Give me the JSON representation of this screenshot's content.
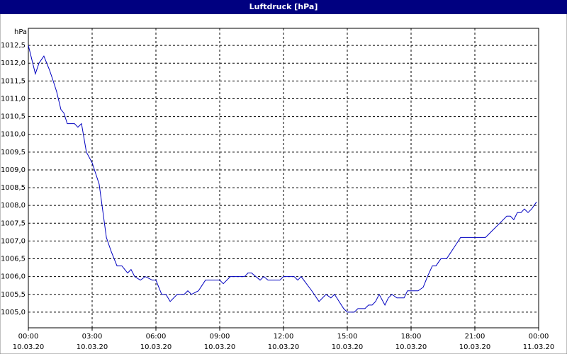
{
  "chart_data": {
    "type": "line",
    "title": "Luftdruck [hPa]",
    "y_unit_label": "hPa",
    "x": [
      0,
      0.33,
      0.5,
      0.73,
      1.0,
      1.17,
      1.33,
      1.53,
      1.67,
      1.83,
      2.17,
      2.33,
      2.5,
      2.73,
      3.0,
      3.33,
      3.67,
      3.9,
      4.17,
      4.4,
      4.67,
      4.83,
      5.0,
      5.27,
      5.5,
      5.83,
      6.0,
      6.27,
      6.47,
      6.67,
      7.0,
      7.33,
      7.5,
      7.67,
      8.0,
      8.33,
      9.0,
      9.17,
      9.5,
      10.17,
      10.33,
      10.5,
      10.9,
      11.07,
      11.27,
      11.83,
      12.0,
      12.5,
      12.67,
      12.83,
      13.33,
      13.67,
      14.0,
      14.23,
      14.4,
      14.83,
      15.0,
      15.33,
      15.5,
      15.83,
      16.0,
      16.17,
      16.33,
      16.5,
      16.77,
      16.93,
      17.1,
      17.33,
      17.67,
      17.83,
      18.33,
      18.57,
      18.77,
      19.0,
      19.17,
      19.4,
      19.67,
      20.0,
      20.33,
      21.5,
      21.83,
      22.17,
      22.5,
      22.67,
      22.83,
      23.0,
      23.17,
      23.33,
      23.5,
      23.67,
      23.9
    ],
    "series": [
      {
        "name": "Luftdruck",
        "color": "#0000c0",
        "values": [
          1012.5,
          1011.7,
          1012.0,
          1012.2,
          1011.8,
          1011.5,
          1011.2,
          1010.7,
          1010.6,
          1010.3,
          1010.3,
          1010.2,
          1010.3,
          1009.5,
          1009.2,
          1008.6,
          1007.1,
          1006.7,
          1006.3,
          1006.3,
          1006.1,
          1006.2,
          1006.0,
          1005.9,
          1006.0,
          1005.9,
          1005.9,
          1005.5,
          1005.5,
          1005.3,
          1005.5,
          1005.5,
          1005.6,
          1005.5,
          1005.6,
          1005.9,
          1005.9,
          1005.8,
          1006.0,
          1006.0,
          1006.1,
          1006.1,
          1005.9,
          1006.0,
          1005.9,
          1005.9,
          1006.0,
          1006.0,
          1005.9,
          1006.0,
          1005.6,
          1005.3,
          1005.5,
          1005.4,
          1005.5,
          1005.1,
          1005.0,
          1005.0,
          1005.1,
          1005.1,
          1005.2,
          1005.2,
          1005.3,
          1005.5,
          1005.2,
          1005.4,
          1005.5,
          1005.4,
          1005.4,
          1005.6,
          1005.6,
          1005.7,
          1006.0,
          1006.3,
          1006.3,
          1006.5,
          1006.5,
          1006.8,
          1007.1,
          1007.1,
          1007.3,
          1007.5,
          1007.7,
          1007.7,
          1007.6,
          1007.8,
          1007.8,
          1007.9,
          1007.8,
          1007.9,
          1008.1
        ]
      }
    ],
    "xlim": [
      0,
      24
    ],
    "xticks": [
      {
        "value": 0,
        "label": "00:00",
        "date": "10.03.20"
      },
      {
        "value": 3,
        "label": "03:00",
        "date": "10.03.20"
      },
      {
        "value": 6,
        "label": "06:00",
        "date": "10.03.20"
      },
      {
        "value": 9,
        "label": "09:00",
        "date": "10.03.20"
      },
      {
        "value": 12,
        "label": "12:00",
        "date": "10.03.20"
      },
      {
        "value": 15,
        "label": "15:00",
        "date": "10.03.20"
      },
      {
        "value": 18,
        "label": "18:00",
        "date": "10.03.20"
      },
      {
        "value": 21,
        "label": "21:00",
        "date": "10.03.20"
      },
      {
        "value": 24,
        "label": "00:00",
        "date": "11.03.20"
      }
    ],
    "ylim": [
      1004.56,
      1012.98
    ],
    "yticks": [
      {
        "value": 1005.0,
        "label": "1005,0"
      },
      {
        "value": 1005.5,
        "label": "1005,5"
      },
      {
        "value": 1006.0,
        "label": "1006,0"
      },
      {
        "value": 1006.5,
        "label": "1006,5"
      },
      {
        "value": 1007.0,
        "label": "1007,0"
      },
      {
        "value": 1007.5,
        "label": "1007,5"
      },
      {
        "value": 1008.0,
        "label": "1008,0"
      },
      {
        "value": 1008.5,
        "label": "1008,5"
      },
      {
        "value": 1009.0,
        "label": "1009,0"
      },
      {
        "value": 1009.5,
        "label": "1009,5"
      },
      {
        "value": 1010.0,
        "label": "1010,0"
      },
      {
        "value": 1010.5,
        "label": "1010,5"
      },
      {
        "value": 1011.0,
        "label": "1011,0"
      },
      {
        "value": 1011.5,
        "label": "1011,5"
      },
      {
        "value": 1012.0,
        "label": "1012,0"
      },
      {
        "value": 1012.5,
        "label": "1012,5"
      }
    ],
    "grid": true
  }
}
